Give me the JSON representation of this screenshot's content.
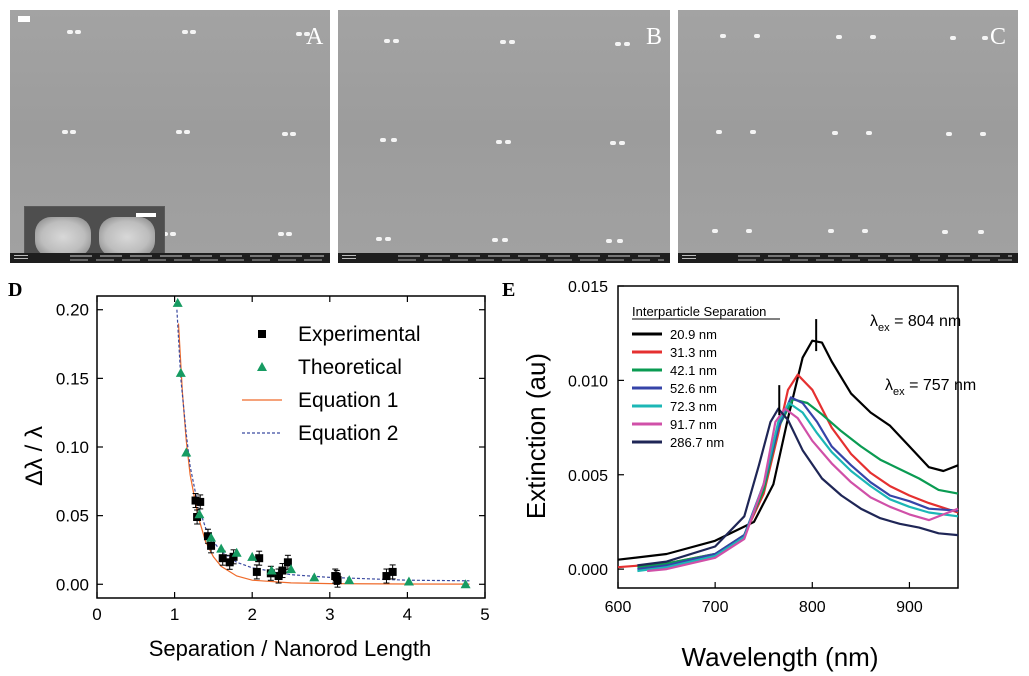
{
  "sem": {
    "panels": [
      {
        "letter": "A"
      },
      {
        "letter": "B"
      },
      {
        "letter": "C"
      }
    ]
  },
  "chart_data": [
    {
      "panel": "D",
      "type": "scatter",
      "xlabel": "Separation / Nanorod Length",
      "ylabel": "Δλ / λ",
      "xlim": [
        0,
        5
      ],
      "ylim": [
        -0.01,
        0.21
      ],
      "xticks": [
        "0",
        "1",
        "2",
        "3",
        "4",
        "5"
      ],
      "yticks": [
        "0.00",
        "0.05",
        "0.10",
        "0.15",
        "0.20"
      ],
      "grid": false,
      "legend": "top-right",
      "series": [
        {
          "name": "Experimental",
          "kind": "points",
          "marker": "square",
          "color": "#000000",
          "points": [
            [
              1.27,
              0.061
            ],
            [
              1.29,
              0.049
            ],
            [
              1.33,
              0.06
            ],
            [
              1.43,
              0.035
            ],
            [
              1.47,
              0.028
            ],
            [
              1.62,
              0.019
            ],
            [
              1.71,
              0.016
            ],
            [
              1.76,
              0.02
            ],
            [
              2.06,
              0.009
            ],
            [
              2.09,
              0.019
            ],
            [
              2.24,
              0.008
            ],
            [
              2.34,
              0.006
            ],
            [
              2.39,
              0.01
            ],
            [
              2.46,
              0.016
            ],
            [
              3.07,
              0.006
            ],
            [
              3.09,
              0.005
            ],
            [
              3.1,
              0.003
            ],
            [
              3.73,
              0.006
            ],
            [
              3.81,
              0.009
            ]
          ]
        },
        {
          "name": "Theoretical",
          "kind": "points",
          "marker": "triangle",
          "color": "#169b62",
          "points": [
            [
              1.04,
              0.205
            ],
            [
              1.08,
              0.154
            ],
            [
              1.15,
              0.096
            ],
            [
              1.32,
              0.051
            ],
            [
              1.47,
              0.034
            ],
            [
              1.6,
              0.026
            ],
            [
              1.8,
              0.023
            ],
            [
              2.0,
              0.02
            ],
            [
              2.25,
              0.01
            ],
            [
              2.5,
              0.011
            ],
            [
              2.8,
              0.005
            ],
            [
              3.25,
              0.003
            ],
            [
              4.02,
              0.002
            ],
            [
              4.75,
              0.0
            ]
          ]
        },
        {
          "name": "Equation 1",
          "kind": "line",
          "style": "solid",
          "color": "#ef6b2b",
          "points": [
            [
              1.05,
              0.19
            ],
            [
              1.1,
              0.14
            ],
            [
              1.15,
              0.105
            ],
            [
              1.2,
              0.08
            ],
            [
              1.3,
              0.05
            ],
            [
              1.4,
              0.031
            ],
            [
              1.5,
              0.02
            ],
            [
              1.6,
              0.013
            ],
            [
              1.8,
              0.006
            ],
            [
              2.0,
              0.003
            ],
            [
              2.5,
              0.001
            ],
            [
              3.0,
              0.0005
            ],
            [
              4.0,
              0.0002
            ],
            [
              4.8,
              0.0001
            ]
          ]
        },
        {
          "name": "Equation 2",
          "kind": "line",
          "style": "dashed",
          "color": "#3b4aa0",
          "points": [
            [
              1.03,
              0.2
            ],
            [
              1.08,
              0.15
            ],
            [
              1.15,
              0.11
            ],
            [
              1.2,
              0.086
            ],
            [
              1.3,
              0.058
            ],
            [
              1.4,
              0.041
            ],
            [
              1.5,
              0.031
            ],
            [
              1.6,
              0.024
            ],
            [
              1.8,
              0.016
            ],
            [
              2.0,
              0.012
            ],
            [
              2.5,
              0.007
            ],
            [
              3.0,
              0.005
            ],
            [
              3.5,
              0.004
            ],
            [
              4.0,
              0.003
            ],
            [
              4.8,
              0.0025
            ]
          ]
        }
      ]
    },
    {
      "panel": "E",
      "type": "line",
      "xlabel": "Wavelength (nm)",
      "ylabel": "Extinction (au)",
      "xlim": [
        600,
        950
      ],
      "ylim": [
        -0.001,
        0.015
      ],
      "xticks": [
        "600",
        "700",
        "800",
        "900"
      ],
      "yticks": [
        "0.000",
        "0.005",
        "0.010",
        "0.015"
      ],
      "grid": false,
      "legend": "top-left",
      "legend_title": "Interparticle Separation",
      "annotations": [
        {
          "text": "λ",
          "sub": "ex",
          "rest": " = 804 nm",
          "x": 804,
          "y": 0.0124
        },
        {
          "text": "λ",
          "sub": "ex",
          "rest": " = 757 nm",
          "x": 766,
          "y": 0.0089
        }
      ],
      "series": [
        {
          "name": "20.9 nm",
          "color": "#000000",
          "points": [
            [
              600,
              0.0005
            ],
            [
              650,
              0.0008
            ],
            [
              700,
              0.0015
            ],
            [
              740,
              0.0025
            ],
            [
              760,
              0.0045
            ],
            [
              775,
              0.008
            ],
            [
              790,
              0.0112
            ],
            [
              800,
              0.0121
            ],
            [
              810,
              0.012
            ],
            [
              820,
              0.011
            ],
            [
              840,
              0.0093
            ],
            [
              860,
              0.0083
            ],
            [
              880,
              0.0076
            ],
            [
              900,
              0.0065
            ],
            [
              920,
              0.0054
            ],
            [
              935,
              0.0052
            ],
            [
              950,
              0.0055
            ]
          ]
        },
        {
          "name": "31.3 nm",
          "color": "#e53030",
          "points": [
            [
              600,
              0.0001
            ],
            [
              650,
              0.0003
            ],
            [
              700,
              0.0008
            ],
            [
              730,
              0.0018
            ],
            [
              750,
              0.004
            ],
            [
              765,
              0.0072
            ],
            [
              775,
              0.0095
            ],
            [
              785,
              0.0103
            ],
            [
              800,
              0.0095
            ],
            [
              820,
              0.0075
            ],
            [
              840,
              0.0061
            ],
            [
              860,
              0.0051
            ],
            [
              880,
              0.0044
            ],
            [
              900,
              0.0039
            ],
            [
              920,
              0.0035
            ],
            [
              950,
              0.003
            ]
          ]
        },
        {
          "name": "42.1 nm",
          "color": "#0a9b52",
          "points": [
            [
              620,
              0.0001
            ],
            [
              650,
              0.0003
            ],
            [
              700,
              0.0008
            ],
            [
              730,
              0.0018
            ],
            [
              750,
              0.0042
            ],
            [
              765,
              0.0075
            ],
            [
              780,
              0.009
            ],
            [
              795,
              0.0088
            ],
            [
              810,
              0.0082
            ],
            [
              830,
              0.0073
            ],
            [
              850,
              0.0065
            ],
            [
              870,
              0.0058
            ],
            [
              890,
              0.0053
            ],
            [
              910,
              0.0048
            ],
            [
              930,
              0.0042
            ],
            [
              950,
              0.004
            ]
          ]
        },
        {
          "name": "52.6 nm",
          "color": "#3644a8",
          "points": [
            [
              620,
              0.0
            ],
            [
              650,
              0.0002
            ],
            [
              700,
              0.0008
            ],
            [
              730,
              0.0018
            ],
            [
              750,
              0.0045
            ],
            [
              765,
              0.0075
            ],
            [
              778,
              0.0091
            ],
            [
              790,
              0.0088
            ],
            [
              805,
              0.0078
            ],
            [
              820,
              0.0065
            ],
            [
              840,
              0.0055
            ],
            [
              860,
              0.0046
            ],
            [
              880,
              0.0039
            ],
            [
              900,
              0.0036
            ],
            [
              920,
              0.0032
            ],
            [
              950,
              0.0031
            ]
          ]
        },
        {
          "name": "72.3 nm",
          "color": "#1cb7b6",
          "points": [
            [
              620,
              -0.0001
            ],
            [
              650,
              0.0001
            ],
            [
              700,
              0.0007
            ],
            [
              730,
              0.0017
            ],
            [
              750,
              0.0045
            ],
            [
              765,
              0.0078
            ],
            [
              776,
              0.0088
            ],
            [
              790,
              0.0083
            ],
            [
              805,
              0.0072
            ],
            [
              820,
              0.0062
            ],
            [
              840,
              0.0052
            ],
            [
              860,
              0.0044
            ],
            [
              880,
              0.0037
            ],
            [
              900,
              0.0033
            ],
            [
              920,
              0.003
            ],
            [
              950,
              0.0028
            ]
          ]
        },
        {
          "name": "91.7 nm",
          "color": "#d050a8",
          "points": [
            [
              630,
              -0.0001
            ],
            [
              650,
              0.0
            ],
            [
              700,
              0.0006
            ],
            [
              730,
              0.0016
            ],
            [
              750,
              0.0045
            ],
            [
              762,
              0.0078
            ],
            [
              772,
              0.0085
            ],
            [
              785,
              0.008
            ],
            [
              800,
              0.0068
            ],
            [
              820,
              0.0056
            ],
            [
              840,
              0.0046
            ],
            [
              860,
              0.0038
            ],
            [
              880,
              0.0033
            ],
            [
              900,
              0.0029
            ],
            [
              920,
              0.0026
            ],
            [
              950,
              0.0032
            ]
          ]
        },
        {
          "name": "286.7 nm",
          "color": "#1f2656",
          "points": [
            [
              620,
              0.0002
            ],
            [
              650,
              0.0004
            ],
            [
              700,
              0.0012
            ],
            [
              730,
              0.0028
            ],
            [
              745,
              0.0055
            ],
            [
              757,
              0.0078
            ],
            [
              765,
              0.0085
            ],
            [
              775,
              0.0079
            ],
            [
              790,
              0.0063
            ],
            [
              810,
              0.0048
            ],
            [
              830,
              0.0039
            ],
            [
              850,
              0.0032
            ],
            [
              870,
              0.0027
            ],
            [
              890,
              0.0024
            ],
            [
              910,
              0.0022
            ],
            [
              930,
              0.0019
            ],
            [
              950,
              0.0018
            ]
          ]
        }
      ]
    }
  ]
}
